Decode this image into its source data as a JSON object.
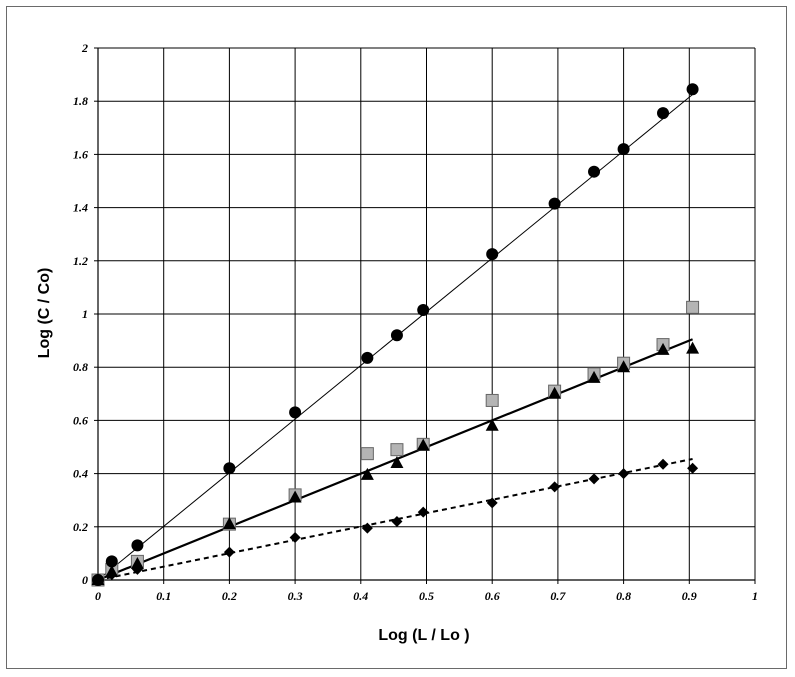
{
  "chart_data": {
    "type": "scatter",
    "xlabel": "Log (L / Lo )",
    "ylabel": "Log (C / Co)",
    "xlim": [
      0,
      1
    ],
    "ylim": [
      0,
      2
    ],
    "x_ticks": [
      "0",
      "0.1",
      "0.2",
      "0.3",
      "0.4",
      "0.5",
      "0.6",
      "0.7",
      "0.8",
      "0.9",
      "1"
    ],
    "y_ticks": [
      "0",
      "0.2",
      "0.4",
      "0.6",
      "0.8",
      "1",
      "1.2",
      "1.4",
      "1.6",
      "1.8",
      "2"
    ],
    "grid": true,
    "series": [
      {
        "marker": "circle",
        "color": "#000000",
        "x": [
          0.0,
          0.021,
          0.06,
          0.2,
          0.3,
          0.41,
          0.455,
          0.495,
          0.6,
          0.695,
          0.755,
          0.8,
          0.86,
          0.905
        ],
        "y": [
          0.0,
          0.07,
          0.13,
          0.42,
          0.63,
          0.835,
          0.92,
          1.015,
          1.225,
          1.415,
          1.535,
          1.62,
          1.755,
          1.845
        ],
        "trendline": {
          "x": [
            0,
            0.905
          ],
          "y": [
            0,
            1.825
          ],
          "style": "thin"
        }
      },
      {
        "marker": "square",
        "color": "#b4b4b4",
        "x": [
          0.0,
          0.021,
          0.06,
          0.2,
          0.3,
          0.41,
          0.455,
          0.495,
          0.6,
          0.695,
          0.755,
          0.8,
          0.86,
          0.905
        ],
        "y": [
          0.0,
          0.04,
          0.07,
          0.21,
          0.32,
          0.475,
          0.49,
          0.51,
          0.675,
          0.71,
          0.775,
          0.815,
          0.885,
          1.025
        ]
      },
      {
        "marker": "triangle",
        "color": "#000000",
        "x": [
          0.0,
          0.021,
          0.06,
          0.2,
          0.3,
          0.41,
          0.455,
          0.495,
          0.6,
          0.695,
          0.755,
          0.8,
          0.86,
          0.905
        ],
        "y": [
          0.0,
          0.03,
          0.06,
          0.21,
          0.31,
          0.395,
          0.44,
          0.505,
          0.58,
          0.7,
          0.76,
          0.8,
          0.865,
          0.87
        ],
        "trendline": {
          "x": [
            0,
            0.905
          ],
          "y": [
            0,
            0.905
          ],
          "style": "thick"
        }
      },
      {
        "marker": "diamond",
        "color": "#000000",
        "x": [
          0.0,
          0.021,
          0.06,
          0.2,
          0.3,
          0.41,
          0.455,
          0.495,
          0.6,
          0.695,
          0.755,
          0.8,
          0.86,
          0.905
        ],
        "y": [
          0.0,
          0.02,
          0.04,
          0.105,
          0.16,
          0.195,
          0.22,
          0.255,
          0.29,
          0.35,
          0.38,
          0.4,
          0.435,
          0.42
        ],
        "trendline": {
          "x": [
            0,
            0.905
          ],
          "y": [
            0,
            0.455
          ],
          "style": "dashed"
        }
      }
    ]
  }
}
